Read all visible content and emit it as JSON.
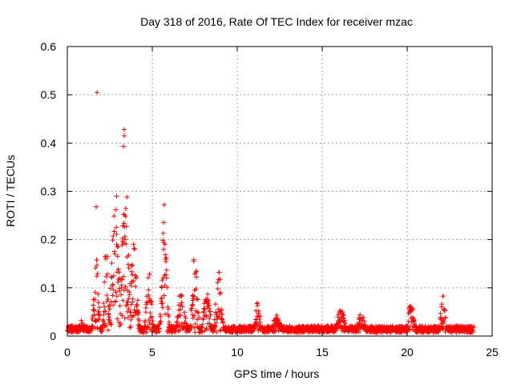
{
  "chart_data": {
    "type": "scatter",
    "title": "Day 318 of 2016, Rate Of TEC Index for receiver mzac",
    "xlabel": "GPS time / hours",
    "ylabel": "ROTI / TECUs",
    "xlim": [
      0,
      25
    ],
    "ylim": [
      0,
      0.6
    ],
    "xticks": [
      "0",
      "5",
      "10",
      "15",
      "20",
      "25"
    ],
    "yticks": [
      "0",
      "0.1",
      "0.2",
      "0.3",
      "0.4",
      "0.5",
      "0.6"
    ],
    "grid": true,
    "marker": "plus",
    "color": "#ff0000",
    "series": [
      {
        "name": "ROTI",
        "bursts": [
          {
            "center": 0.8,
            "width": 0.25,
            "peak": 0.04
          },
          {
            "center": 1.7,
            "width": 0.2,
            "peak": 0.16
          },
          {
            "center": 2.3,
            "width": 0.15,
            "peak": 0.22
          },
          {
            "center": 2.8,
            "width": 0.3,
            "peak": 0.29
          },
          {
            "center": 3.4,
            "width": 0.3,
            "peak": 0.29
          },
          {
            "center": 3.9,
            "width": 0.25,
            "peak": 0.21
          },
          {
            "center": 4.8,
            "width": 0.2,
            "peak": 0.14
          },
          {
            "center": 5.7,
            "width": 0.2,
            "peak": 0.25
          },
          {
            "center": 6.7,
            "width": 0.25,
            "peak": 0.11
          },
          {
            "center": 7.5,
            "width": 0.2,
            "peak": 0.18
          },
          {
            "center": 8.2,
            "width": 0.25,
            "peak": 0.1
          },
          {
            "center": 8.9,
            "width": 0.2,
            "peak": 0.15
          },
          {
            "center": 11.2,
            "width": 0.2,
            "peak": 0.07
          },
          {
            "center": 12.3,
            "width": 0.3,
            "peak": 0.05
          },
          {
            "center": 16.1,
            "width": 0.3,
            "peak": 0.06
          },
          {
            "center": 17.3,
            "width": 0.3,
            "peak": 0.05
          },
          {
            "center": 20.2,
            "width": 0.25,
            "peak": 0.07
          },
          {
            "center": 22.1,
            "width": 0.2,
            "peak": 0.09
          }
        ],
        "outliers": [
          {
            "x": 1.75,
            "y": 0.505
          },
          {
            "x": 3.35,
            "y": 0.428
          },
          {
            "x": 3.35,
            "y": 0.415
          },
          {
            "x": 3.3,
            "y": 0.393
          },
          {
            "x": 1.7,
            "y": 0.268
          },
          {
            "x": 5.7,
            "y": 0.272
          },
          {
            "x": 2.9,
            "y": 0.29
          },
          {
            "x": 3.5,
            "y": 0.288
          }
        ],
        "baseline": 0.015,
        "x_range": [
          0,
          23.9
        ]
      }
    ]
  }
}
